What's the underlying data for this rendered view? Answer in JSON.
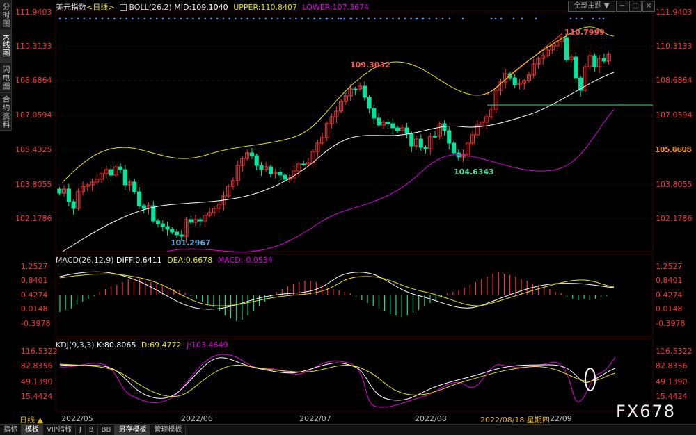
{
  "side_tabs": [
    {
      "label": "分时图",
      "active": false
    },
    {
      "label": "K线图",
      "active": true
    },
    {
      "label": "闪电图",
      "active": false
    },
    {
      "label": "合约资料",
      "active": false
    }
  ],
  "header": {
    "symbol": "美元指数",
    "period": "<日线>",
    "boll_name": "BOLL(26,2)",
    "mid": "MID:109.1040",
    "upper": "UPPER:110.8407",
    "lower": "LOWER:107.3674",
    "main_chart_button": "全部主题"
  },
  "price_axis": [
    "111.9403",
    "110.3133",
    "108.6864",
    "107.0594",
    "105.4325",
    "103.8055",
    "102.1786"
  ],
  "current_price": "105.6608",
  "price_annotations": {
    "high_1": "109.3032",
    "high_2": "110.7999",
    "low_1": "101.2967",
    "low_2": "104.6343"
  },
  "macd": {
    "title": "MACD(26,12,9)",
    "diff": "DIFF:0.6411",
    "dea": "DEA:0.6678",
    "macd": "MACD:-0.0534",
    "axis": [
      "1.2527",
      "0.8401",
      "0.4274",
      "0.0148",
      "-0.3978"
    ]
  },
  "kdj": {
    "title": "KDJ(9,3,3)",
    "k": "K:80.8065",
    "d": "D:69.4772",
    "j": "J:103.4649",
    "axis": [
      "116.5322",
      "82.8356",
      "49.1390",
      "15.4424"
    ]
  },
  "time_axis": {
    "period_button": "日线 ▲",
    "labels": [
      "2022/05",
      "2022/06",
      "2022/07",
      "2022/08",
      "22/09"
    ],
    "cursor_label": "2022/08/18 星期四"
  },
  "bottom_tabs": [
    {
      "label": "指标",
      "active": false
    },
    {
      "label": "模板",
      "active": true
    },
    {
      "label": "VIP指标",
      "active": false
    },
    {
      "label": "J",
      "active": false
    },
    {
      "label": "B",
      "active": false
    },
    {
      "label": "BB",
      "active": false
    },
    {
      "label": "另存模板",
      "active": true
    },
    {
      "label": "管理模板",
      "active": false
    }
  ],
  "watermark": "FX678",
  "colors": {
    "up": "#ff3333",
    "down": "#00e5a0",
    "mid": "#ffffff",
    "upper": "#e6e600",
    "lower": "#e000e0",
    "grid": "#444444",
    "axis": "#ff3333"
  }
}
